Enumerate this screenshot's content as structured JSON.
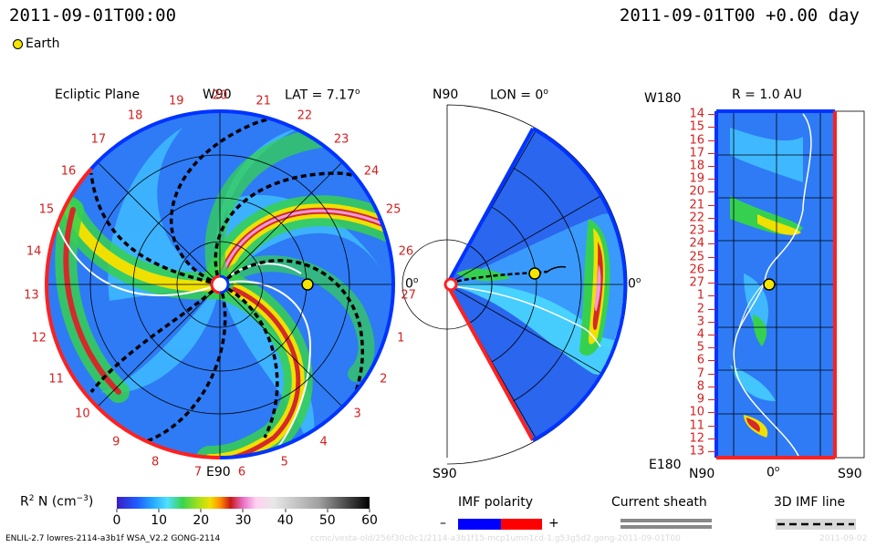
{
  "header": {
    "datetime_left": "2011-09-01T00:00",
    "datetime_right": "2011-09-01T00 +0.00 day",
    "legend_earth": "Earth",
    "earth_color": "#f5e500"
  },
  "panels": {
    "ecliptic": {
      "title": "Ecliptic Plane",
      "top_label": "W90",
      "bottom_label": "E90",
      "right_label": "0",
      "lat_text": "LAT = 7.17",
      "lat_sup": "o"
    },
    "meridional": {
      "top_label": "N90",
      "bottom_label": "S90",
      "lon_text": "LON = 0",
      "lon_sup": "o",
      "right_label": "0",
      "right_sup": "o"
    },
    "radial": {
      "title": "R = 1.0 AU",
      "top_label": "W180",
      "bottom_label": "E180",
      "x_tick_labels": [
        "N90",
        "0",
        "S90"
      ],
      "x_tick_sup": "o"
    }
  },
  "carrington_labels": {
    "ecliptic": [
      "20",
      "21",
      "22",
      "23",
      "24",
      "25",
      "26",
      "27",
      "1",
      "2",
      "3",
      "4",
      "5",
      "6",
      "7",
      "8",
      "9",
      "10",
      "11",
      "12",
      "13",
      "14",
      "15",
      "16",
      "17",
      "18",
      "19"
    ],
    "radial": [
      "14",
      "15",
      "16",
      "17",
      "18",
      "19",
      "20",
      "21",
      "22",
      "23",
      "24",
      "25",
      "26",
      "27",
      "1",
      "2",
      "3",
      "4",
      "5",
      "6",
      "7",
      "8",
      "9",
      "10",
      "11",
      "12",
      "13"
    ]
  },
  "colorbar": {
    "label_main": "R",
    "label_sup": "2",
    "label_rest": " N (cm",
    "label_exp": "−3",
    "label_end": ")",
    "ticks": [
      "0",
      "10",
      "20",
      "30",
      "40",
      "50",
      "60"
    ],
    "range": [
      0,
      60
    ],
    "stops": [
      "#3a1ec4",
      "#1f5cff",
      "#25a6ff",
      "#4fe0ff",
      "#3ad24e",
      "#9ee020",
      "#f0e000",
      "#ff8a00",
      "#c81818",
      "#e870c8",
      "#ffd0f0",
      "#e8e8e8",
      "#a0a0a0",
      "#000000"
    ]
  },
  "legends": {
    "imf_polarity": {
      "title": "IMF polarity",
      "minus": "–",
      "plus": "+",
      "minus_color": "#0000ff",
      "plus_color": "#ff0000"
    },
    "current_sheath": {
      "title": "Current sheath"
    },
    "imf_line": {
      "title": "3D IMF line"
    }
  },
  "footer": {
    "model_info": "ENLIL-2.7 lowres-2114-a3b1f WSA_V2.2 GONG-2114",
    "watermark": "ccmc/vesta-old/256f30c0c1/2114-a3b1f15-mcp1umn1cd-1.g53g5d2.gong-2011-09-01T00",
    "watermark_right": "2011-09-02"
  },
  "chart_data": [
    {
      "type": "heatmap",
      "title": "Ecliptic Plane",
      "description_value": "solar wind density scaled by R^2 in ecliptic plane",
      "latitude_deg": 7.17,
      "earth": {
        "position_AU": 1.0,
        "longitude_deg": 0
      }
    },
    {
      "type": "heatmap",
      "title": "LON = 0",
      "earth": {
        "position_AU": 1.0,
        "latitude_deg": 7.17
      }
    },
    {
      "type": "heatmap",
      "title": "R = 1.0 AU",
      "x_ticks": [
        "N90",
        "0",
        "S90"
      ],
      "y_ticks": [
        "14",
        "15",
        "16",
        "17",
        "18",
        "19",
        "20",
        "21",
        "22",
        "23",
        "24",
        "25",
        "26",
        "27",
        "1",
        "2",
        "3",
        "4",
        "5",
        "6",
        "7",
        "8",
        "9",
        "10",
        "11",
        "12",
        "13"
      ]
    }
  ]
}
